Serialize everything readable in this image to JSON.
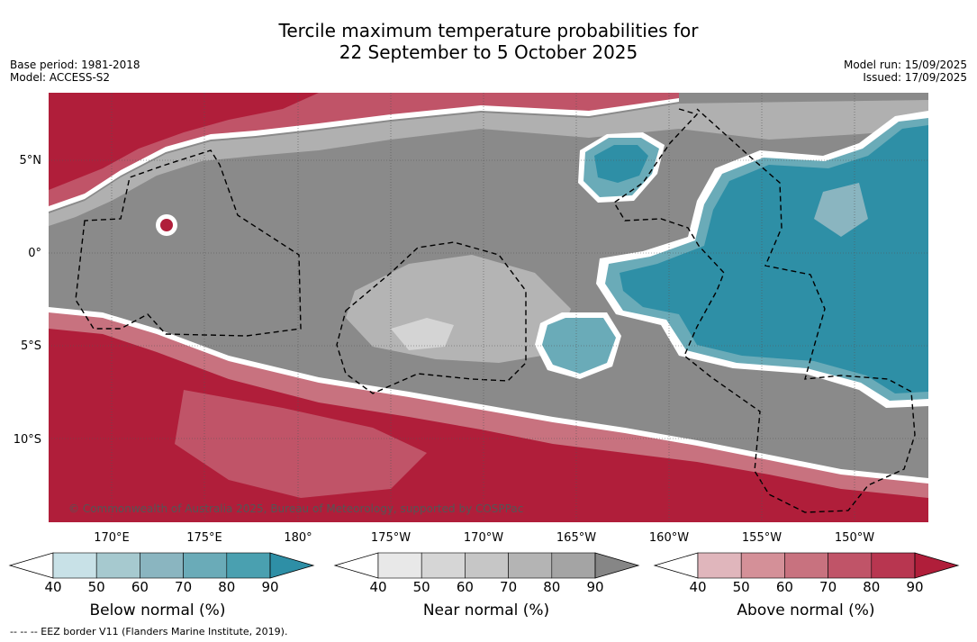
{
  "title_line1": "Tercile maximum temperature probabilities for",
  "title_line2": "22 September to 5 October 2025",
  "meta_left": [
    "Base period: 1981-2018",
    "Model: ACCESS-S2"
  ],
  "meta_right": [
    "Model run: 15/09/2025",
    "Issued: 17/09/2025"
  ],
  "lat_labels": [
    "5°N",
    "0°",
    "5°S",
    "10°S"
  ],
  "lon_labels": [
    "170°E",
    "175°E",
    "180°",
    "175°W",
    "170°W",
    "165°W",
    "160°W",
    "155°W",
    "150°W"
  ],
  "copyright": "© Commonwealth of Australia 2025, Bureau of Meteorology, supported by COSPPac",
  "footnote": "--  --  -- EEZ border V11 (Flanders Marine Institute, 2019).",
  "colorbars": [
    {
      "title": "Below normal (%)",
      "ticks": [
        "40",
        "50",
        "60",
        "70",
        "80",
        "90"
      ],
      "colors": [
        "#ffffff",
        "#c8e1e7",
        "#a6c9cf",
        "#8ab5c0",
        "#6aabb8",
        "#4aa0b0",
        "#2e8fa6"
      ]
    },
    {
      "title": "Near normal (%)",
      "ticks": [
        "40",
        "50",
        "60",
        "70",
        "80",
        "90"
      ],
      "colors": [
        "#ffffff",
        "#e8e8e8",
        "#d6d6d6",
        "#c6c6c6",
        "#b4b4b4",
        "#a4a4a4",
        "#868686"
      ]
    },
    {
      "title": "Above normal (%)",
      "ticks": [
        "40",
        "50",
        "60",
        "70",
        "80",
        "90"
      ],
      "colors": [
        "#ffffff",
        "#e0b6bc",
        "#d49098",
        "#c8727f",
        "#c05468",
        "#b83650",
        "#b01e3a"
      ]
    }
  ]
}
